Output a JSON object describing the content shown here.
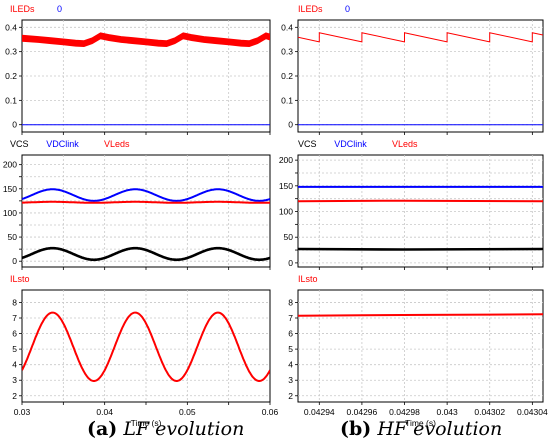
{
  "colors": {
    "red": "#ff0000",
    "blue": "#0000ff",
    "black": "#000000",
    "grid": "#c8c8c8",
    "frame": "#000000",
    "label_blue": "#0000ff"
  },
  "captions": [
    {
      "tag": "(a)",
      "text": "LF evolution"
    },
    {
      "tag": "(b)",
      "text": "HF evolution"
    }
  ],
  "chart_data": [
    {
      "id": "lf-iled",
      "type": "line",
      "x_range": [
        0.03,
        0.06
      ],
      "ylim": [
        -0.03,
        0.43
      ],
      "yticks": [
        0,
        0.1,
        0.2,
        0.3,
        0.4
      ],
      "ytick_labels": [
        "0",
        "0.1",
        "0.2",
        "0.3",
        "0.4"
      ],
      "xticks": [
        0.03,
        0.035,
        0.04,
        0.045,
        0.05,
        0.055,
        0.06
      ],
      "grid": true,
      "legend": [
        {
          "name": "ILEDs",
          "color": "#ff0000"
        },
        {
          "name": "0",
          "color": "#0000ff"
        }
      ],
      "series": [
        {
          "name": "ILEDs",
          "color": "#ff0000",
          "band": true,
          "x": [
            0.03,
            0.032,
            0.0335,
            0.035,
            0.0365,
            0.0375,
            0.0385,
            0.0395,
            0.0405,
            0.042,
            0.0435,
            0.045,
            0.0465,
            0.0475,
            0.0485,
            0.0495,
            0.0505,
            0.052,
            0.0535,
            0.055,
            0.0565,
            0.0575,
            0.0585,
            0.0595,
            0.06
          ],
          "y": [
            0.355,
            0.35,
            0.345,
            0.34,
            0.335,
            0.333,
            0.345,
            0.365,
            0.358,
            0.35,
            0.345,
            0.34,
            0.335,
            0.333,
            0.345,
            0.365,
            0.358,
            0.35,
            0.345,
            0.34,
            0.335,
            0.333,
            0.345,
            0.365,
            0.36
          ]
        },
        {
          "name": "0",
          "color": "#0000ff",
          "x": [
            0.03,
            0.06
          ],
          "y": [
            0,
            0
          ]
        }
      ]
    },
    {
      "id": "lf-voltages",
      "type": "line",
      "x_range": [
        0.03,
        0.06
      ],
      "ylim": [
        -12,
        220
      ],
      "yticks": [
        0,
        25,
        50,
        75,
        100,
        125,
        150,
        175,
        200
      ],
      "ytick_labels": [
        "0",
        "",
        "50",
        "",
        "100",
        "",
        "150",
        "",
        "200"
      ],
      "xticks": [
        0.03,
        0.035,
        0.04,
        0.045,
        0.05,
        0.055,
        0.06
      ],
      "grid": true,
      "legend": [
        {
          "name": "VCS",
          "color": "#000000"
        },
        {
          "name": "VDClink",
          "color": "#0000ff"
        },
        {
          "name": "VLeds",
          "color": "#ff0000"
        }
      ],
      "series": [
        {
          "name": "VDClink",
          "color": "#0000ff",
          "kind": "sine",
          "mean": 137,
          "amp": 12,
          "period": 0.01,
          "peak_at": 0.0337
        },
        {
          "name": "VLeds",
          "color": "#ff0000",
          "kind": "sine",
          "mean": 122,
          "amp": 1,
          "period": 0.01,
          "peak_at": 0.0337
        },
        {
          "name": "VCS",
          "color": "#000000",
          "kind": "sine",
          "mean": 15,
          "amp": 12,
          "period": 0.01,
          "peak_at": 0.0337
        }
      ]
    },
    {
      "id": "lf-ilsto",
      "type": "line",
      "x_range": [
        0.03,
        0.06
      ],
      "ylim": [
        1.6,
        8.8
      ],
      "yticks": [
        2,
        3,
        4,
        5,
        6,
        7,
        8
      ],
      "ytick_labels": [
        "2",
        "3",
        "4",
        "5",
        "6",
        "7",
        "8"
      ],
      "xticks": [
        0.03,
        0.035,
        0.04,
        0.045,
        0.05,
        0.055,
        0.06
      ],
      "xtick_labels": [
        "0.03",
        "",
        "0.04",
        "",
        "0.05",
        "",
        "0.06"
      ],
      "xlabel": "Time (s)",
      "grid": true,
      "legend": [
        {
          "name": "ILsto",
          "color": "#ff0000"
        }
      ],
      "series": [
        {
          "name": "ILsto",
          "color": "#ff0000",
          "kind": "sine",
          "mean": 5.15,
          "amp": 2.2,
          "period": 0.01,
          "peak_at": 0.0337
        }
      ]
    },
    {
      "id": "hf-iled",
      "type": "line",
      "x_range": [
        0.04293,
        0.043045
      ],
      "ylim": [
        -0.03,
        0.43
      ],
      "yticks": [
        0,
        0.1,
        0.2,
        0.3,
        0.4
      ],
      "ytick_labels": [
        "0",
        "0.1",
        "0.2",
        "0.3",
        "0.4"
      ],
      "xticks": [
        0.04294,
        0.04296,
        0.04298,
        0.043,
        0.04302,
        0.04304
      ],
      "grid": true,
      "legend": [
        {
          "name": "ILEDs",
          "color": "#ff0000"
        },
        {
          "name": "0",
          "color": "#0000ff"
        }
      ],
      "series": [
        {
          "name": "ILEDs",
          "color": "#ff0000",
          "kind": "sawtooth",
          "high": 0.378,
          "low": 0.34,
          "period": 2e-05,
          "reset_at": 0.04294
        },
        {
          "name": "0",
          "color": "#0000ff",
          "x": [
            0.04293,
            0.043045
          ],
          "y": [
            0,
            0
          ]
        }
      ]
    },
    {
      "id": "hf-voltages",
      "type": "line",
      "x_range": [
        0.04293,
        0.043045
      ],
      "ylim": [
        -8,
        210
      ],
      "yticks": [
        0,
        25,
        50,
        75,
        100,
        125,
        150,
        175,
        200
      ],
      "ytick_labels": [
        "0",
        "",
        "50",
        "",
        "100",
        "",
        "150",
        "",
        "200"
      ],
      "xticks": [
        0.04294,
        0.04296,
        0.04298,
        0.043,
        0.04302,
        0.04304
      ],
      "grid": true,
      "legend": [
        {
          "name": "VCS",
          "color": "#000000"
        },
        {
          "name": "VDClink",
          "color": "#0000ff"
        },
        {
          "name": "VLeds",
          "color": "#ff0000"
        }
      ],
      "series": [
        {
          "name": "VDClink",
          "color": "#0000ff",
          "x": [
            0.04293,
            0.043045
          ],
          "y": [
            148,
            148
          ]
        },
        {
          "name": "VLeds",
          "color": "#ff0000",
          "x": [
            0.04293,
            0.04298,
            0.043045
          ],
          "y": [
            120,
            121,
            120
          ]
        },
        {
          "name": "VCS",
          "color": "#000000",
          "x": [
            0.04293,
            0.04298,
            0.043045
          ],
          "y": [
            27,
            26,
            27
          ]
        }
      ]
    },
    {
      "id": "hf-ilsto",
      "type": "line",
      "x_range": [
        0.04293,
        0.043045
      ],
      "ylim": [
        1.6,
        8.8
      ],
      "yticks": [
        2,
        3,
        4,
        5,
        6,
        7,
        8
      ],
      "ytick_labels": [
        "2",
        "3",
        "4",
        "5",
        "6",
        "7",
        "8"
      ],
      "xticks": [
        0.04294,
        0.04296,
        0.04298,
        0.043,
        0.04302,
        0.04304
      ],
      "xtick_labels": [
        "0.04294",
        "0.04296",
        "0.04298",
        "0.043",
        "0.04302",
        "0.04304"
      ],
      "xlabel": "Time (s)",
      "grid": true,
      "legend": [
        {
          "name": "ILsto",
          "color": "#ff0000"
        }
      ],
      "series": [
        {
          "name": "ILsto",
          "color": "#ff0000",
          "x": [
            0.04293,
            0.04296,
            0.04299,
            0.04302,
            0.043045
          ],
          "y": [
            7.15,
            7.18,
            7.2,
            7.22,
            7.24
          ]
        }
      ]
    }
  ]
}
